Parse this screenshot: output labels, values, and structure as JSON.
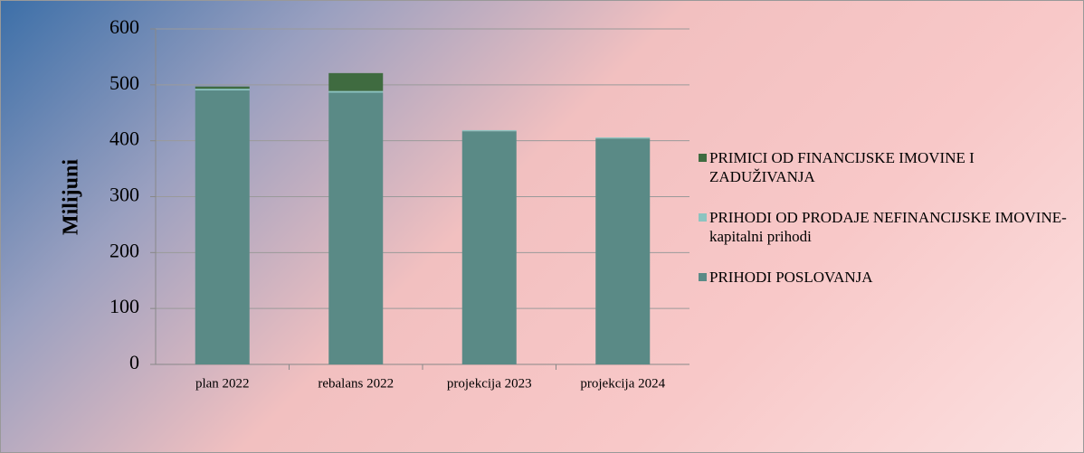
{
  "chart_data": {
    "type": "stacked_bar",
    "y_label": "Milijuni",
    "categories": [
      "plan 2022",
      "rebalans 2022",
      "projekcija 2023",
      "projekcija 2024"
    ],
    "series": [
      {
        "name": "PRIHODI POSLOVANJA",
        "color": "#5a8a86",
        "values": [
          490,
          486,
          417,
          404
        ]
      },
      {
        "name": "PRIHODI OD PRODAJE NEFINANCIJSKE IMOVINE-kapitalni prihodi",
        "color": "#8cc4c0",
        "values": [
          3,
          3,
          2,
          2
        ]
      },
      {
        "name": "PRIMICI OD FINANCIJSKE IMOVINE I ZADUŽIVANJA",
        "color": "#3f6b40",
        "values": [
          4,
          32,
          0,
          0
        ]
      }
    ],
    "ylim": [
      0,
      600
    ],
    "yticks": [
      0,
      100,
      200,
      300,
      400,
      500,
      600
    ],
    "grid": true,
    "legend": "right"
  }
}
